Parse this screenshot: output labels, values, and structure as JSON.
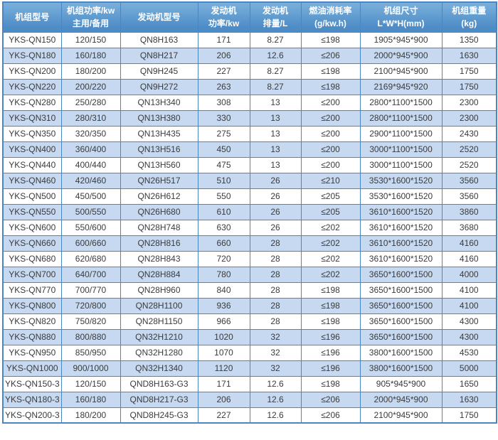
{
  "colors": {
    "border": "#4a86c2",
    "header_bg_top": "#7bb0dc",
    "header_bg_bottom": "#4d8cc6",
    "header_text": "#ffffff",
    "row_alt_bg": "#c6d9f0",
    "row_bg": "#ffffff",
    "cell_text": "#3b3b3b"
  },
  "table": {
    "columns": [
      {
        "id": "unit-model",
        "lines": [
          "机组型号"
        ]
      },
      {
        "id": "unit-power",
        "lines": [
          "机组功率/kw",
          "主用/备用"
        ]
      },
      {
        "id": "engine-model",
        "lines": [
          "发动机型号"
        ]
      },
      {
        "id": "engine-power",
        "lines": [
          "发动机",
          "功率/kw"
        ]
      },
      {
        "id": "engine-displacement",
        "lines": [
          "发动机",
          "排量/L"
        ]
      },
      {
        "id": "fuel-consumption",
        "lines": [
          "燃油消耗率",
          "(g/kw.h)"
        ]
      },
      {
        "id": "unit-dimensions",
        "lines": [
          "机组尺寸",
          "L*W*H(mm)"
        ]
      },
      {
        "id": "unit-weight",
        "lines": [
          "机组重量",
          "(kg)"
        ]
      }
    ],
    "rows": [
      [
        "YKS-QN150",
        "120/150",
        "QN8H163",
        "171",
        "8.27",
        "≤198",
        "1905*945*900",
        "1350"
      ],
      [
        "YKS-QN180",
        "160/180",
        "QN8H217",
        "206",
        "12.6",
        "≤206",
        "2000*945*900",
        "1630"
      ],
      [
        "YKS-QN200",
        "180/200",
        "QN9H245",
        "227",
        "8.27",
        "≤198",
        "2100*945*900",
        "1750"
      ],
      [
        "YKS-QN220",
        "200/220",
        "QN9H272",
        "263",
        "8.27",
        "≤198",
        "2169*945*920",
        "1750"
      ],
      [
        "YKS-QN280",
        "250/280",
        "QN13H340",
        "308",
        "13",
        "≤200",
        "2800*1100*1500",
        "2300"
      ],
      [
        "YKS-QN310",
        "280/310",
        "QN13H380",
        "330",
        "13",
        "≤200",
        "2800*1100*1500",
        "2300"
      ],
      [
        "YKS-QN350",
        "320/350",
        "QN13H435",
        "275",
        "13",
        "≤200",
        "2900*1100*1500",
        "2430"
      ],
      [
        "YKS-QN400",
        "360/400",
        "QN13H516",
        "450",
        "13",
        "≤200",
        "3000*1100*1500",
        "2520"
      ],
      [
        "YKS-QN440",
        "400/440",
        "QN13H560",
        "475",
        "13",
        "≤200",
        "3000*1100*1500",
        "2520"
      ],
      [
        "YKS-QN460",
        "420/460",
        "QN26H517",
        "510",
        "26",
        "≤210",
        "3530*1600*1520",
        "3560"
      ],
      [
        "YKS-QN500",
        "450/500",
        "QN26H612",
        "550",
        "26",
        "≤205",
        "3530*1600*1520",
        "3560"
      ],
      [
        "YKS-QN550",
        "500/550",
        "QN26H680",
        "610",
        "26",
        "≤205",
        "3610*1600*1520",
        "3860"
      ],
      [
        "YKS-QN600",
        "550/600",
        "QN28H748",
        "630",
        "26",
        "≤202",
        "3610*1600*1520",
        "3680"
      ],
      [
        "YKS-QN660",
        "600/660",
        "QN28H816",
        "660",
        "28",
        "≤202",
        "3610*1600*1520",
        "4160"
      ],
      [
        "YKS-QN680",
        "620/680",
        "QN28H843",
        "720",
        "28",
        "≤202",
        "3610*1600*1520",
        "4160"
      ],
      [
        "YKS-QN700",
        "640/700",
        "QN28H884",
        "780",
        "28",
        "≤202",
        "3650*1600*1500",
        "4000"
      ],
      [
        "YKS-QN770",
        "700/770",
        "QN28H960",
        "840",
        "28",
        "≤198",
        "3650*1600*1500",
        "4100"
      ],
      [
        "YKS-QN800",
        "720/800",
        "QN28H1100",
        "936",
        "28",
        "≤198",
        "3650*1600*1500",
        "4100"
      ],
      [
        "YKS-QN820",
        "750/820",
        "QN28H1150",
        "966",
        "28",
        "≤198",
        "3650*1600*1500",
        "4300"
      ],
      [
        "YKS-QN880",
        "800/880",
        "QN32H1210",
        "1020",
        "32",
        "≤196",
        "3650*1600*1500",
        "4300"
      ],
      [
        "YKS-QN950",
        "850/950",
        "QN32H1280",
        "1070",
        "32",
        "≤196",
        "3800*1600*1500",
        "4530"
      ],
      [
        "YKS-QN1000",
        "900/1000",
        "QN32H1340",
        "1120",
        "32",
        "≤196",
        "3800*1600*1500",
        "5000"
      ],
      [
        "YKS-QN150-3",
        "120/150",
        "QND8H163-G3",
        "171",
        "12.6",
        "≤198",
        "905*945*900",
        "1650"
      ],
      [
        "YKS-QN180-3",
        "160/180",
        "QND8H217-G3",
        "206",
        "12.6",
        "≤206",
        "2000*945*900",
        "1630"
      ],
      [
        "YKS-QN200-3",
        "180/200",
        "QND8H245-G3",
        "227",
        "12.6",
        "≤206",
        "2100*945*900",
        "1750"
      ]
    ]
  }
}
